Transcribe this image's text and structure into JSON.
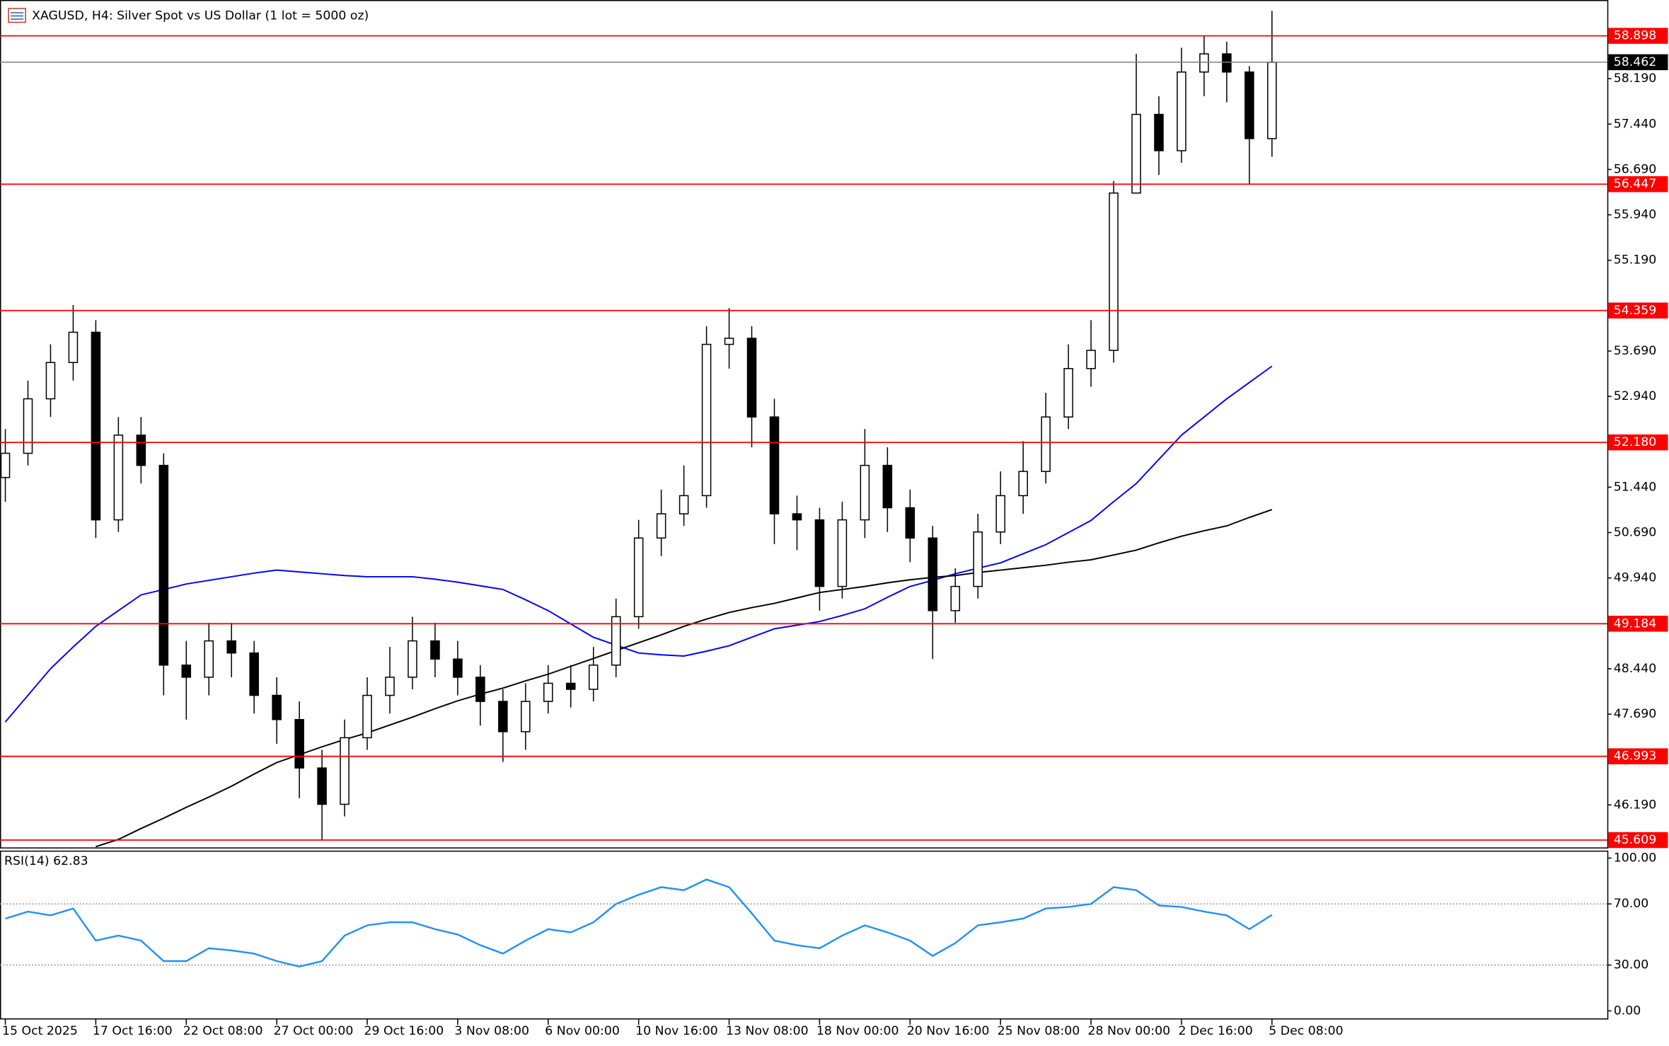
{
  "chart_data": [
    {
      "type": "candlestick",
      "title": "XAGUSD, H4:  Silver Spot vs US Dollar (1 lot = 5000 oz)",
      "categories": [
        "15 Oct 2025",
        null,
        null,
        null,
        "17 Oct 16:00",
        null,
        null,
        null,
        "22 Oct 08:00",
        null,
        null,
        null,
        "27 Oct 00:00",
        null,
        null,
        null,
        "29 Oct 16:00",
        null,
        null,
        null,
        "3 Nov 08:00",
        null,
        null,
        null,
        "6 Nov 00:00",
        null,
        null,
        null,
        "10 Nov 16:00",
        null,
        null,
        null,
        "13 Nov 08:00",
        null,
        null,
        null,
        "18 Nov 00:00",
        null,
        null,
        null,
        "20 Nov 16:00",
        null,
        null,
        null,
        "25 Nov 08:00",
        null,
        null,
        null,
        "28 Nov 00:00",
        null,
        null,
        null,
        "2 Dec 16:00",
        null,
        null,
        null,
        "5 Dec 08:00"
      ],
      "open": [
        51.6,
        52.0,
        52.9,
        53.5,
        54.0,
        50.9,
        52.3,
        51.8,
        48.5,
        48.3,
        48.9,
        48.7,
        48.0,
        47.6,
        46.8,
        46.2,
        47.3,
        48.0,
        48.3,
        48.9,
        48.6,
        48.3,
        47.9,
        47.4,
        47.9,
        48.2,
        48.1,
        48.5,
        49.3,
        50.6,
        51.0,
        51.3,
        53.8,
        53.9,
        52.6,
        51.0,
        50.9,
        49.8,
        50.9,
        51.8,
        51.1,
        50.6,
        49.4,
        49.8,
        50.7,
        51.3,
        51.7,
        52.6,
        53.4,
        53.7,
        56.3,
        57.6,
        57.0,
        58.3,
        58.6,
        58.3,
        57.2
      ],
      "high": [
        52.4,
        53.2,
        53.8,
        54.45,
        54.2,
        52.6,
        52.6,
        52.0,
        48.9,
        49.2,
        49.2,
        48.9,
        48.3,
        47.9,
        47.1,
        47.6,
        48.3,
        48.8,
        49.3,
        49.2,
        48.9,
        48.5,
        48.1,
        48.2,
        48.5,
        48.5,
        48.8,
        49.6,
        50.9,
        51.4,
        51.8,
        54.1,
        54.4,
        54.1,
        52.9,
        51.3,
        51.1,
        51.2,
        52.4,
        52.1,
        51.4,
        50.8,
        50.1,
        51.0,
        51.7,
        52.2,
        53.0,
        53.8,
        54.2,
        56.5,
        58.6,
        57.9,
        58.7,
        58.9,
        58.8,
        58.4,
        59.31
      ],
      "low": [
        51.2,
        51.8,
        52.6,
        53.2,
        50.6,
        50.7,
        51.5,
        48.0,
        47.6,
        48.0,
        48.3,
        47.7,
        47.2,
        46.3,
        45.6,
        46.0,
        47.1,
        47.7,
        48.1,
        48.3,
        48.0,
        47.5,
        46.9,
        47.1,
        47.7,
        47.8,
        47.9,
        48.3,
        49.1,
        50.3,
        50.8,
        51.1,
        53.4,
        52.1,
        50.5,
        50.4,
        49.4,
        49.6,
        50.6,
        50.7,
        50.2,
        48.6,
        49.2,
        49.6,
        50.5,
        51.0,
        51.5,
        52.4,
        53.1,
        53.5,
        56.4,
        56.6,
        56.8,
        57.9,
        57.8,
        56.45,
        56.9
      ],
      "close": [
        52.0,
        52.9,
        53.5,
        54.0,
        50.9,
        52.3,
        51.8,
        48.5,
        48.3,
        48.9,
        48.7,
        48.0,
        47.6,
        46.8,
        46.2,
        47.3,
        48.0,
        48.3,
        48.9,
        48.6,
        48.3,
        47.9,
        47.4,
        47.9,
        48.2,
        48.1,
        48.5,
        49.3,
        50.6,
        51.0,
        51.3,
        53.8,
        53.9,
        52.6,
        51.0,
        50.9,
        49.8,
        50.9,
        51.8,
        51.1,
        50.6,
        49.4,
        49.8,
        50.7,
        51.3,
        51.7,
        52.6,
        53.4,
        53.7,
        56.3,
        57.6,
        57.0,
        58.3,
        58.6,
        58.3,
        57.2,
        58.46
      ],
      "series": [
        {
          "color": "#0000ff",
          "values": [
            47.56,
            48.0,
            48.44,
            48.8,
            49.14,
            49.4,
            49.66,
            49.75,
            49.84,
            49.9,
            49.96,
            50.02,
            50.07,
            50.04,
            50.01,
            49.98,
            49.96,
            49.96,
            49.96,
            49.92,
            49.87,
            49.81,
            49.75,
            49.58,
            49.4,
            49.18,
            48.96,
            48.83,
            48.7,
            48.67,
            48.65,
            48.73,
            48.82,
            48.96,
            49.1,
            49.16,
            49.22,
            49.32,
            49.43,
            49.62,
            49.8,
            49.9,
            50.01,
            50.1,
            50.19,
            50.34,
            50.49,
            50.69,
            50.89,
            51.2,
            51.5,
            51.9,
            52.3,
            52.6,
            52.9,
            53.17,
            53.44
          ]
        },
        {
          "color": "#000000",
          "values": [
            null,
            null,
            null,
            null,
            45.5,
            45.62,
            45.8,
            45.97,
            46.15,
            46.32,
            46.5,
            46.7,
            46.89,
            47.02,
            47.15,
            47.27,
            47.38,
            47.51,
            47.64,
            47.78,
            47.91,
            48.02,
            48.12,
            48.24,
            48.35,
            48.48,
            48.61,
            48.74,
            48.87,
            49.0,
            49.14,
            49.26,
            49.37,
            49.45,
            49.52,
            49.61,
            49.7,
            49.75,
            49.8,
            49.86,
            49.91,
            49.95,
            49.98,
            50.03,
            50.07,
            50.11,
            50.15,
            50.2,
            50.24,
            50.32,
            50.4,
            50.52,
            50.63,
            50.72,
            50.8,
            50.94,
            51.07
          ]
        }
      ],
      "levels": [
        {
          "value": 58.898,
          "label": "58.898"
        },
        {
          "value": 56.447,
          "label": "56.447"
        },
        {
          "value": 54.359,
          "label": "54.359"
        },
        {
          "value": 52.18,
          "label": "52.180"
        },
        {
          "value": 49.184,
          "label": "49.184"
        },
        {
          "value": 46.993,
          "label": "46.993"
        },
        {
          "value": 45.609,
          "label": "45.609"
        }
      ],
      "level_color": "#ff0000",
      "current_price": {
        "value": 58.462,
        "label": "58.462"
      },
      "ylim": [
        45.47,
        59.49
      ],
      "yticks": [
        {
          "value": 58.19,
          "label": "58.190"
        },
        {
          "value": 57.44,
          "label": "57.440"
        },
        {
          "value": 56.69,
          "label": "56.690"
        },
        {
          "value": 55.94,
          "label": "55.940"
        },
        {
          "value": 55.19,
          "label": "55.190"
        },
        {
          "value": 53.69,
          "label": "53.690"
        },
        {
          "value": 52.94,
          "label": "52.940"
        },
        {
          "value": 51.44,
          "label": "51.440"
        },
        {
          "value": 50.69,
          "label": "50.690"
        },
        {
          "value": 49.94,
          "label": "49.940"
        },
        {
          "value": 48.44,
          "label": "48.440"
        },
        {
          "value": 47.69,
          "label": "47.690"
        },
        {
          "value": 46.19,
          "label": "46.190"
        }
      ]
    },
    {
      "type": "line",
      "title": "RSI(14) 62.83",
      "series": [
        {
          "color": "#1e90ff",
          "values": [
            60.4,
            65,
            62.5,
            67,
            46,
            49.3,
            46,
            32.6,
            32.6,
            41,
            39.6,
            37.5,
            32.6,
            29,
            32.6,
            49.3,
            56,
            58,
            58,
            53.5,
            50,
            43,
            37.5,
            46,
            53.5,
            51.4,
            58,
            70,
            76,
            81,
            79,
            86,
            81,
            63.9,
            46,
            43,
            41,
            49.3,
            56,
            51.4,
            46,
            36,
            44.4,
            56,
            58,
            60.4,
            67,
            68,
            70,
            81,
            79,
            69,
            68,
            65,
            62.5,
            53.5,
            62.83
          ]
        }
      ],
      "levels": [
        70,
        30
      ],
      "ylim": [
        -5.6,
        104.9
      ],
      "yticks": [
        {
          "value": 100,
          "label": "100.00"
        },
        {
          "value": 70,
          "label": "70.00"
        },
        {
          "value": 30,
          "label": "30.00"
        },
        {
          "value": 0,
          "label": "0.00"
        }
      ]
    }
  ]
}
